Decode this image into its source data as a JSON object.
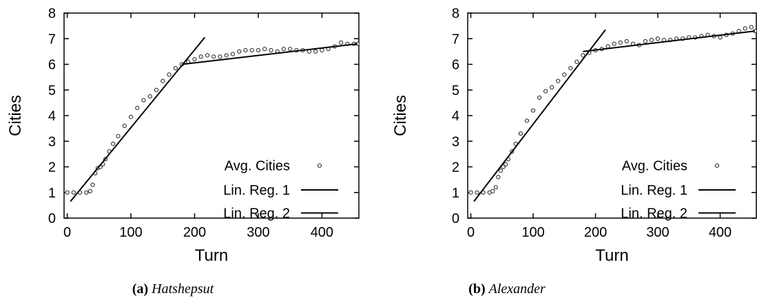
{
  "chart_data": [
    {
      "type": "scatter",
      "caption_tag": "(a)",
      "caption_name": "Hatshepsut",
      "xlabel": "Turn",
      "ylabel": "Cities",
      "xlim": [
        -5,
        458
      ],
      "ylim": [
        0,
        8
      ],
      "xticks": [
        "0",
        "100",
        "200",
        "300",
        "400"
      ],
      "yticks": [
        "0",
        "1",
        "2",
        "3",
        "4",
        "5",
        "6",
        "7",
        "8"
      ],
      "grid": false,
      "legend_position": "bottom-right",
      "legend": [
        "Avg. Cities",
        "Lin. Reg. 1",
        "Lin. Reg. 2"
      ],
      "series": [
        {
          "name": "Avg. Cities",
          "kind": "points",
          "x": [
            0,
            10,
            20,
            30,
            36,
            40,
            44,
            48,
            52,
            56,
            60,
            66,
            72,
            80,
            90,
            100,
            110,
            120,
            130,
            140,
            150,
            160,
            170,
            180,
            190,
            200,
            210,
            220,
            230,
            240,
            250,
            260,
            270,
            280,
            290,
            300,
            310,
            320,
            330,
            340,
            350,
            360,
            370,
            380,
            390,
            400,
            410,
            420,
            430,
            440,
            450,
            456
          ],
          "y": [
            1.0,
            1.0,
            1.0,
            1.0,
            1.05,
            1.3,
            1.75,
            1.95,
            2.0,
            2.1,
            2.3,
            2.6,
            2.9,
            3.2,
            3.6,
            3.95,
            4.3,
            4.6,
            4.75,
            5.0,
            5.35,
            5.6,
            5.85,
            6.0,
            6.1,
            6.2,
            6.3,
            6.35,
            6.3,
            6.3,
            6.35,
            6.4,
            6.5,
            6.55,
            6.55,
            6.55,
            6.6,
            6.55,
            6.5,
            6.6,
            6.6,
            6.55,
            6.55,
            6.5,
            6.5,
            6.55,
            6.6,
            6.7,
            6.85,
            6.8,
            6.8,
            6.8
          ]
        },
        {
          "name": "Lin. Reg. 1",
          "kind": "line",
          "x": [
            5,
            216
          ],
          "y": [
            0.65,
            7.05
          ]
        },
        {
          "name": "Lin. Reg. 2",
          "kind": "line",
          "x": [
            180,
            456
          ],
          "y": [
            6.0,
            6.8
          ]
        }
      ]
    },
    {
      "type": "scatter",
      "caption_tag": "(b)",
      "caption_name": "Alexander",
      "xlabel": "Turn",
      "ylabel": "Cities",
      "xlim": [
        -5,
        458
      ],
      "ylim": [
        0,
        8
      ],
      "xticks": [
        "0",
        "100",
        "200",
        "300",
        "400"
      ],
      "yticks": [
        "0",
        "1",
        "2",
        "3",
        "4",
        "5",
        "6",
        "7",
        "8"
      ],
      "grid": false,
      "legend_position": "bottom-right",
      "legend": [
        "Avg. Cities",
        "Lin. Reg. 1",
        "Lin. Reg. 2"
      ],
      "series": [
        {
          "name": "Avg. Cities",
          "kind": "points",
          "x": [
            0,
            10,
            20,
            30,
            35,
            40,
            44,
            48,
            52,
            56,
            60,
            66,
            72,
            80,
            90,
            100,
            110,
            120,
            130,
            140,
            150,
            160,
            170,
            180,
            190,
            200,
            210,
            220,
            230,
            240,
            250,
            260,
            270,
            280,
            290,
            300,
            310,
            320,
            330,
            340,
            350,
            360,
            370,
            380,
            390,
            400,
            410,
            420,
            430,
            440,
            450,
            456
          ],
          "y": [
            1.0,
            1.0,
            1.0,
            1.0,
            1.05,
            1.2,
            1.6,
            1.85,
            2.0,
            2.1,
            2.3,
            2.6,
            2.9,
            3.3,
            3.8,
            4.2,
            4.7,
            4.95,
            5.1,
            5.35,
            5.6,
            5.85,
            6.1,
            6.35,
            6.45,
            6.55,
            6.6,
            6.7,
            6.8,
            6.85,
            6.9,
            6.8,
            6.75,
            6.9,
            6.95,
            7.0,
            6.95,
            6.95,
            7.0,
            7.0,
            7.05,
            7.05,
            7.1,
            7.15,
            7.1,
            7.05,
            7.15,
            7.2,
            7.3,
            7.4,
            7.45,
            7.3
          ]
        },
        {
          "name": "Lin. Reg. 1",
          "kind": "line",
          "x": [
            5,
            216
          ],
          "y": [
            0.65,
            7.35
          ]
        },
        {
          "name": "Lin. Reg. 2",
          "kind": "line",
          "x": [
            180,
            456
          ],
          "y": [
            6.5,
            7.3
          ]
        }
      ]
    }
  ]
}
